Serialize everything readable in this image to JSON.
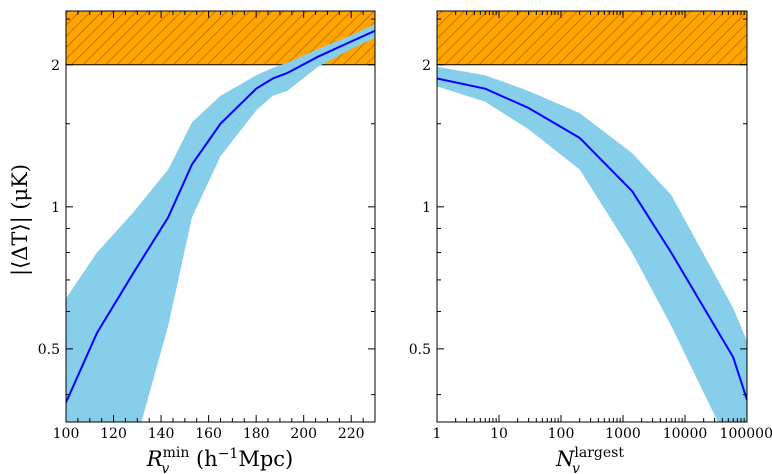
{
  "colors": {
    "band": "#87CEEB",
    "line": "#0000FF",
    "excluded_fill": "#FFA500",
    "excluded_hatch": "#B85A00",
    "axes": "#000000"
  },
  "chart_data": [
    {
      "type": "line",
      "panel": "left",
      "xscale": "linear",
      "yscale": "log",
      "xlim": [
        100,
        230
      ],
      "ylim": [
        0.35,
        2.6
      ],
      "xticks": [
        100,
        120,
        140,
        160,
        180,
        200,
        220
      ],
      "xtick_labels": [
        "100",
        "120",
        "140",
        "160",
        "180",
        "200",
        "220"
      ],
      "yticks": [
        0.5,
        1,
        2
      ],
      "ytick_labels": [
        "0.5",
        "1",
        "2"
      ],
      "xlabel_main": "R",
      "xlabel_sup": "min",
      "xlabel_sub": "v",
      "xlabel_rest": " (h",
      "xlabel_exp": "−1",
      "xlabel_end": "Mpc)",
      "ylabel": "|⟨ΔT⟩| (μK)",
      "excluded_region": {
        "ymin": 2.0,
        "ymax": 2.6
      },
      "x": [
        100,
        113,
        128,
        143,
        153,
        165,
        180,
        187,
        193,
        206,
        220,
        230
      ],
      "y": [
        0.385,
        0.54,
        0.72,
        0.95,
        1.23,
        1.5,
        1.78,
        1.87,
        1.92,
        2.08,
        2.24,
        2.36
      ],
      "lower": [
        0.3,
        0.3,
        0.3,
        0.56,
        0.95,
        1.28,
        1.6,
        1.72,
        1.76,
        1.98,
        2.16,
        2.28
      ],
      "upper": [
        0.64,
        0.8,
        0.97,
        1.2,
        1.51,
        1.72,
        1.9,
        1.97,
        2.02,
        2.16,
        2.31,
        2.44
      ]
    },
    {
      "type": "line",
      "panel": "right",
      "xscale": "log",
      "yscale": "log",
      "xlim": [
        1,
        100000
      ],
      "ylim": [
        0.35,
        2.6
      ],
      "xticks": [
        1,
        10,
        100,
        1000,
        10000,
        100000
      ],
      "xtick_labels": [
        "1",
        "10",
        "100",
        "1000",
        "10000",
        "100000"
      ],
      "yticks": [
        0.5,
        1,
        2
      ],
      "ytick_labels": [
        "0.5",
        "1",
        "2"
      ],
      "xlabel_main": "N",
      "xlabel_sup": "largest",
      "xlabel_sub": "v",
      "excluded_region": {
        "ymin": 2.0,
        "ymax": 2.6
      },
      "x": [
        1,
        6,
        30,
        200,
        1400,
        6000,
        60000,
        100000
      ],
      "y": [
        1.87,
        1.78,
        1.62,
        1.4,
        1.08,
        0.8,
        0.48,
        0.39
      ],
      "lower": [
        1.8,
        1.67,
        1.46,
        1.2,
        0.8,
        0.56,
        0.3,
        0.3
      ],
      "upper": [
        1.98,
        1.9,
        1.76,
        1.58,
        1.3,
        1.06,
        0.61,
        0.52
      ]
    }
  ]
}
